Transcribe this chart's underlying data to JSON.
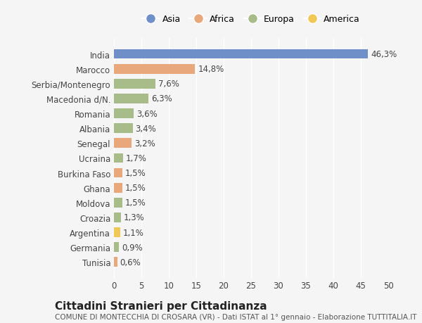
{
  "countries": [
    "India",
    "Marocco",
    "Serbia/Montenegro",
    "Macedonia d/N.",
    "Romania",
    "Albania",
    "Senegal",
    "Ucraina",
    "Burkina Faso",
    "Ghana",
    "Moldova",
    "Croazia",
    "Argentina",
    "Germania",
    "Tunisia"
  ],
  "values": [
    46.3,
    14.8,
    7.6,
    6.3,
    3.6,
    3.4,
    3.2,
    1.7,
    1.5,
    1.5,
    1.5,
    1.3,
    1.1,
    0.9,
    0.6
  ],
  "labels": [
    "46,3%",
    "14,8%",
    "7,6%",
    "6,3%",
    "3,6%",
    "3,4%",
    "3,2%",
    "1,7%",
    "1,5%",
    "1,5%",
    "1,5%",
    "1,3%",
    "1,1%",
    "0,9%",
    "0,6%"
  ],
  "continents": [
    "Asia",
    "Africa",
    "Europa",
    "Europa",
    "Europa",
    "Europa",
    "Africa",
    "Europa",
    "Africa",
    "Africa",
    "Europa",
    "Europa",
    "America",
    "Europa",
    "Africa"
  ],
  "colors": {
    "Asia": "#6f8fc9",
    "Africa": "#e8a87c",
    "Europa": "#a8bc8a",
    "America": "#f0c855"
  },
  "legend_order": [
    "Asia",
    "Africa",
    "Europa",
    "America"
  ],
  "title": "Cittadini Stranieri per Cittadinanza",
  "subtitle": "COMUNE DI MONTECCHIA DI CROSARA (VR) - Dati ISTAT al 1° gennaio - Elaborazione TUTTITALIA.IT",
  "xlim": [
    0,
    50
  ],
  "xticks": [
    0,
    5,
    10,
    15,
    20,
    25,
    30,
    35,
    40,
    45,
    50
  ],
  "background_color": "#f5f5f5",
  "bar_height": 0.65,
  "label_fontsize": 8.5,
  "tick_fontsize": 8.5,
  "title_fontsize": 11,
  "subtitle_fontsize": 7.5,
  "legend_fontsize": 9,
  "legend_marker_size": 10
}
